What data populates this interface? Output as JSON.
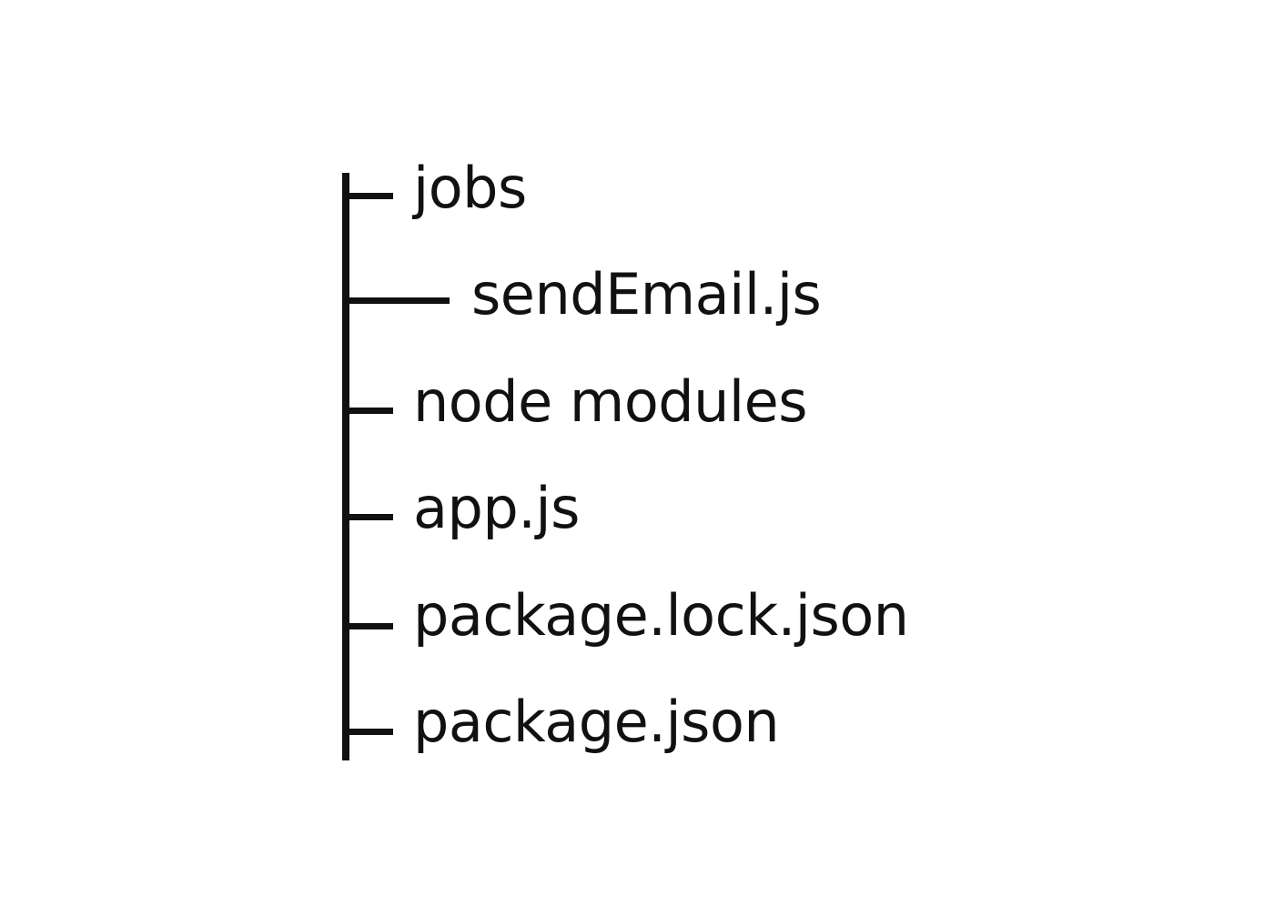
{
  "tree": {
    "items": [
      {
        "label": "jobs",
        "depth": 0
      },
      {
        "label": "sendEmail.js",
        "depth": 1
      },
      {
        "label": "node modules",
        "depth": 0
      },
      {
        "label": "app.js",
        "depth": 0
      },
      {
        "label": "package.lock.json",
        "depth": 0
      },
      {
        "label": "package.json",
        "depth": 0
      }
    ]
  },
  "colors": {
    "line": "#111111",
    "text": "#111111",
    "background": "#ffffff"
  }
}
